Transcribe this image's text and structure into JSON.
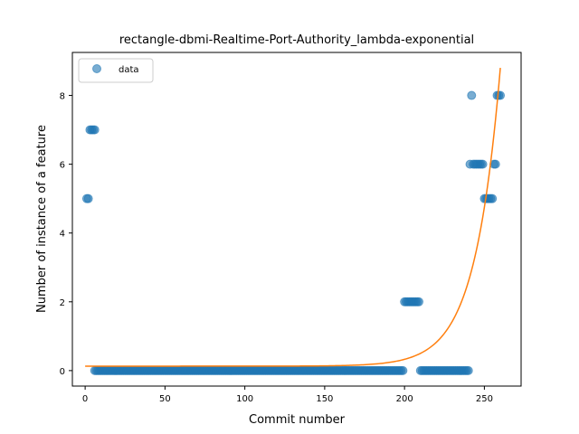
{
  "chart_data": {
    "type": "scatter",
    "title": "rectangle-dbmi-Realtime-Port-Authority_lambda-exponential",
    "xlabel": "Commit number",
    "ylabel": "Number of instance of a feature",
    "xlim": [
      -8,
      273
    ],
    "ylim": [
      -0.45,
      9.25
    ],
    "xticks": [
      0,
      50,
      100,
      150,
      200,
      250
    ],
    "yticks": [
      0,
      2,
      4,
      6,
      8
    ],
    "legend": {
      "placement": "top-left",
      "entries": [
        "data"
      ]
    },
    "colors": {
      "points": "#1f77b4",
      "fit": "#ff7f0e"
    },
    "series": [
      {
        "name": "data",
        "kind": "points",
        "segments": [
          {
            "x_start": 1,
            "x_end": 2,
            "y": 5
          },
          {
            "x_start": 3,
            "x_end": 6,
            "y": 7
          },
          {
            "x_start": 6,
            "x_end": 199,
            "y": 0
          },
          {
            "x_start": 200,
            "x_end": 209,
            "y": 2
          },
          {
            "x_start": 210,
            "x_end": 240,
            "y": 0
          },
          {
            "x_start": 241,
            "x_end": 241,
            "y": 6
          },
          {
            "x_start": 242,
            "x_end": 242,
            "y": 8
          },
          {
            "x_start": 243,
            "x_end": 249,
            "y": 6
          },
          {
            "x_start": 250,
            "x_end": 255,
            "y": 5
          },
          {
            "x_start": 256,
            "x_end": 257,
            "y": 6
          },
          {
            "x_start": 258,
            "x_end": 260,
            "y": 8
          }
        ]
      },
      {
        "kind": "fit",
        "model": "exponential",
        "baseline": 0.13,
        "amplitude": 8.67,
        "rate": 0.063,
        "x_ref": 260,
        "x_from": 0,
        "x_to": 260
      }
    ]
  }
}
